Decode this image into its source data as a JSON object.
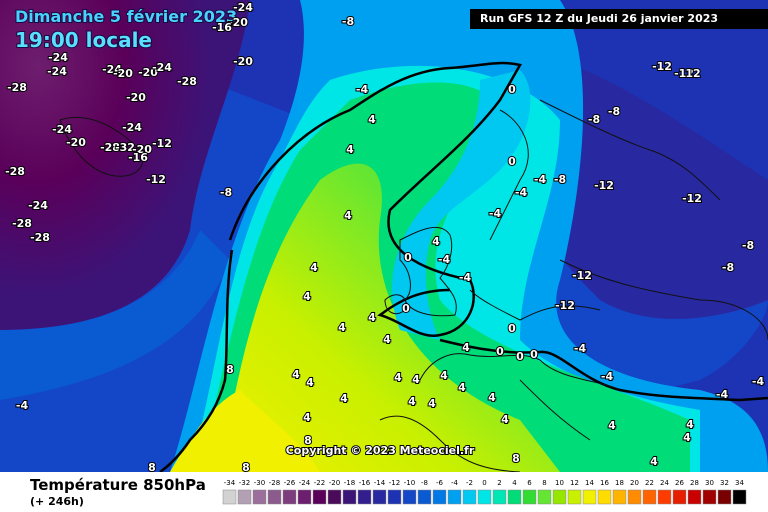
{
  "header": {
    "date": "Dimanche 5 février 2023",
    "time": "19:00 locale",
    "run": "Run GFS 12 Z du Jeudi 26 janvier 2023"
  },
  "copyright": "Copyright © 2023 Meteociel.fr",
  "footer": {
    "title": "Température 850hPa",
    "lead": "(+ 246h)"
  },
  "map": {
    "labels": [
      "-24",
      "-20",
      "-16",
      "-8",
      "-24",
      "-24",
      "-24",
      "-20",
      "-20",
      "-24",
      "-28",
      "-28",
      "-20",
      "-20",
      "-24",
      "-24",
      "-20",
      "-28",
      "-32",
      "-20",
      "-12",
      "-16",
      "-28",
      "-12",
      "-24",
      "-28",
      "-28",
      "-8",
      "-4",
      "4",
      "4",
      "4",
      "0",
      "-8",
      "-8",
      "-12",
      "-12",
      "12",
      "-12",
      "-12",
      "-4",
      "-8",
      "-4",
      "-4",
      "0",
      "0",
      "-4",
      "-4",
      "4",
      "-12",
      "-12",
      "-8",
      "-8",
      "4",
      "4",
      "4",
      "4",
      "4",
      "0",
      "4",
      "0",
      "0",
      "0",
      "0",
      "-4",
      "-4",
      "-4",
      "-4",
      "8",
      "4",
      "4",
      "4",
      "4",
      "4",
      "4",
      "4",
      "4",
      "4",
      "4",
      "4",
      "4",
      "4",
      "4",
      "4",
      "-4",
      "8",
      "8",
      "4",
      "8",
      "8"
    ]
  },
  "legend": {
    "ticks": [
      -34,
      -32,
      -30,
      -28,
      -26,
      -24,
      -22,
      -20,
      -18,
      -16,
      -14,
      -12,
      -10,
      -8,
      -6,
      -4,
      -2,
      0,
      2,
      4,
      6,
      8,
      10,
      12,
      14,
      16,
      18,
      20,
      22,
      24,
      26,
      28,
      30,
      32,
      34
    ],
    "colors": [
      "#d2d2d2",
      "#b4a0b4",
      "#9b6e9b",
      "#8c5a8c",
      "#7d3c7d",
      "#6e1e6e",
      "#5a005a",
      "#4b0a5a",
      "#3c1478",
      "#321e8c",
      "#2828a0",
      "#1e32b4",
      "#1446c8",
      "#0a5ad2",
      "#0078e6",
      "#00a0f0",
      "#00c8f0",
      "#00e6e6",
      "#00e6b4",
      "#00dc78",
      "#32dc32",
      "#64e632",
      "#96e600",
      "#c8f000",
      "#f0f000",
      "#ffdc00",
      "#ffb400",
      "#ff8c00",
      "#ff6400",
      "#ff3c00",
      "#e61e00",
      "#c80000",
      "#a00000",
      "#780000",
      "#000000"
    ]
  }
}
